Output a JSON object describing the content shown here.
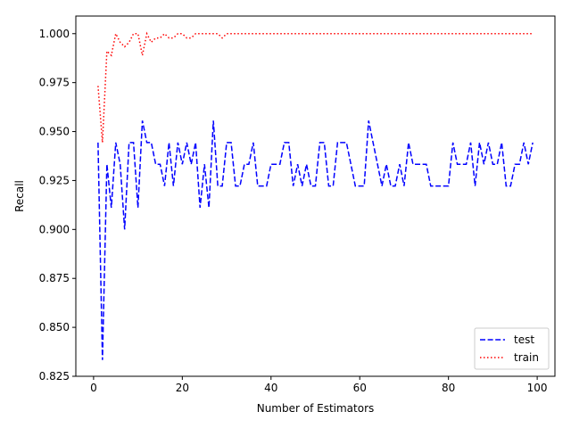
{
  "chart_data": {
    "type": "line",
    "xlabel": "Number of Estimators",
    "ylabel": "Recall",
    "xlim": [
      -4,
      104
    ],
    "ylim": [
      0.825,
      1.009
    ],
    "xticks": [
      0,
      20,
      40,
      60,
      80,
      100
    ],
    "xtick_labels": [
      "0",
      "20",
      "40",
      "60",
      "80",
      "100"
    ],
    "yticks": [
      0.825,
      0.85,
      0.875,
      0.9,
      0.925,
      0.95,
      0.975,
      1.0
    ],
    "ytick_labels": [
      "0.825",
      "0.850",
      "0.875",
      "0.900",
      "0.925",
      "0.950",
      "0.975",
      "1.000"
    ],
    "grid": false,
    "legend_position": "lower right",
    "x_start": 1,
    "series": [
      {
        "name": "test",
        "color": "#0000ff",
        "style": "dashed",
        "values": [
          0.9444,
          0.8333,
          0.9333,
          0.9111,
          0.9444,
          0.9333,
          0.9,
          0.9444,
          0.9444,
          0.9111,
          0.9556,
          0.9444,
          0.9444,
          0.9333,
          0.9333,
          0.9222,
          0.9444,
          0.9222,
          0.9444,
          0.9333,
          0.9444,
          0.9333,
          0.9444,
          0.9111,
          0.9333,
          0.9111,
          0.9556,
          0.9222,
          0.9222,
          0.9444,
          0.9444,
          0.9222,
          0.9222,
          0.9333,
          0.9333,
          0.9444,
          0.9222,
          0.9222,
          0.9222,
          0.9333,
          0.9333,
          0.9333,
          0.9444,
          0.9444,
          0.9222,
          0.9333,
          0.9222,
          0.9333,
          0.9222,
          0.9222,
          0.9444,
          0.9444,
          0.9222,
          0.9222,
          0.9444,
          0.9444,
          0.9444,
          0.9333,
          0.9222,
          0.9222,
          0.9222,
          0.9556,
          0.9444,
          0.9333,
          0.9222,
          0.9333,
          0.9222,
          0.9222,
          0.9333,
          0.9222,
          0.9444,
          0.9333,
          0.9333,
          0.9333,
          0.9333,
          0.9222,
          0.9222,
          0.9222,
          0.9222,
          0.9222,
          0.9444,
          0.9333,
          0.9333,
          0.9333,
          0.9444,
          0.9222,
          0.9444,
          0.9333,
          0.9444,
          0.9333,
          0.9333,
          0.9444,
          0.9222,
          0.9222,
          0.9333,
          0.9333,
          0.9444,
          0.9333,
          0.9444
        ]
      },
      {
        "name": "train",
        "color": "#ff0000",
        "style": "dotted",
        "values": [
          0.9733,
          0.9444,
          0.9911,
          0.9889,
          1.0,
          0.9956,
          0.9933,
          0.9956,
          1.0,
          1.0,
          0.9889,
          1.0,
          0.9956,
          0.9978,
          0.9978,
          1.0,
          0.9978,
          0.9978,
          1.0,
          1.0,
          0.9978,
          0.9978,
          1.0,
          1.0,
          1.0,
          1.0,
          1.0,
          1.0,
          0.9978,
          1.0,
          1.0,
          1.0,
          1.0,
          1.0,
          1.0,
          1.0,
          1.0,
          1.0,
          1.0,
          1.0,
          1.0,
          1.0,
          1.0,
          1.0,
          1.0,
          1.0,
          1.0,
          1.0,
          1.0,
          1.0,
          1.0,
          1.0,
          1.0,
          1.0,
          1.0,
          1.0,
          1.0,
          1.0,
          1.0,
          1.0,
          1.0,
          1.0,
          1.0,
          1.0,
          1.0,
          1.0,
          1.0,
          1.0,
          1.0,
          1.0,
          1.0,
          1.0,
          1.0,
          1.0,
          1.0,
          1.0,
          1.0,
          1.0,
          1.0,
          1.0,
          1.0,
          1.0,
          1.0,
          1.0,
          1.0,
          1.0,
          1.0,
          1.0,
          1.0,
          1.0,
          1.0,
          1.0,
          1.0,
          1.0,
          1.0,
          1.0,
          1.0,
          1.0,
          1.0
        ]
      }
    ]
  }
}
